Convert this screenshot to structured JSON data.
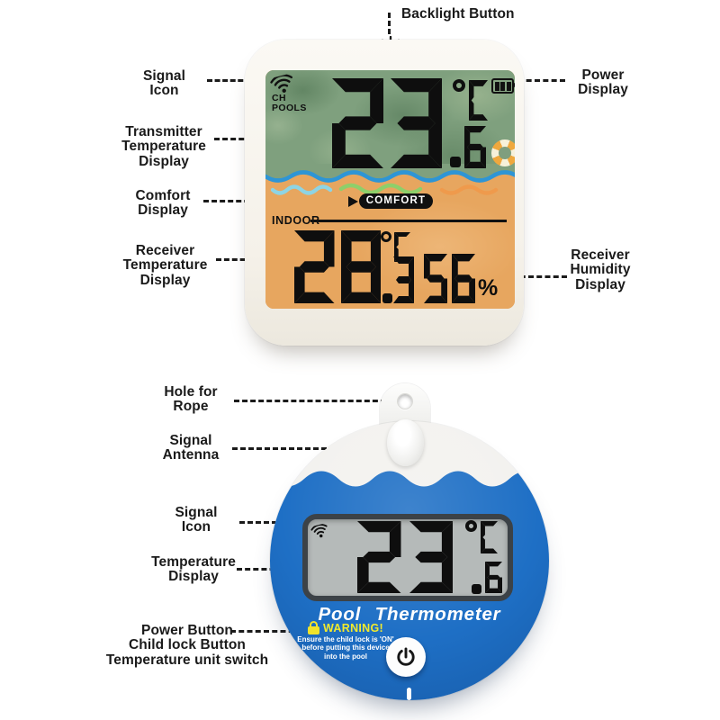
{
  "station": {
    "annotations": {
      "backlight": "Backlight Button",
      "signal": "Signal\nIcon",
      "power": "Power\nDisplay",
      "transmitter": "Transmitter\nTemperature\nDisplay",
      "comfort": "Comfort\nDisplay",
      "receiver_temp": "Receiver\nTemperature\nDisplay",
      "receiver_humidity": "Receiver\nHumidity\nDisplay"
    },
    "display": {
      "channel": "CH",
      "channel_name": "POOLS",
      "pool_temp": {
        "int": "23",
        "dec": "6",
        "degree": "°",
        "unit_letter": "C"
      },
      "comfort_label": "COMFORT",
      "indoor_label": "INDOOR",
      "indoor_temp": {
        "int": "28",
        "dec": "3",
        "degree": "°",
        "unit_letter": "C"
      },
      "humidity": {
        "value": "56",
        "unit": "%"
      }
    }
  },
  "floater": {
    "annotations": {
      "hole": "Hole for\nRope",
      "antenna": "Signal\nAntenna",
      "signal": "Signal\nIcon",
      "temperature": "Temperature\nDisplay",
      "buttons": "Power Button\nChild lock Button\nTemperature unit switch"
    },
    "display": {
      "temp": {
        "int": "23",
        "dec": "6",
        "degree": "°",
        "unit_letter": "C"
      }
    },
    "product_name": "Pool Thermometer",
    "warning_title": "WARNING!",
    "warning_text": "Ensure the child lock is 'ON'\nbefore putting this device\ninto the pool"
  },
  "colors": {
    "screen_green": "#7fa07e",
    "screen_orange": "#e7a65f",
    "wave_blue": "#2e95d5",
    "floater_blue": "#1e6fc5",
    "lcd_gray": "#b5bab9",
    "warning_yellow": "#f2ea2d",
    "digit_black": "#0e0e0e"
  }
}
